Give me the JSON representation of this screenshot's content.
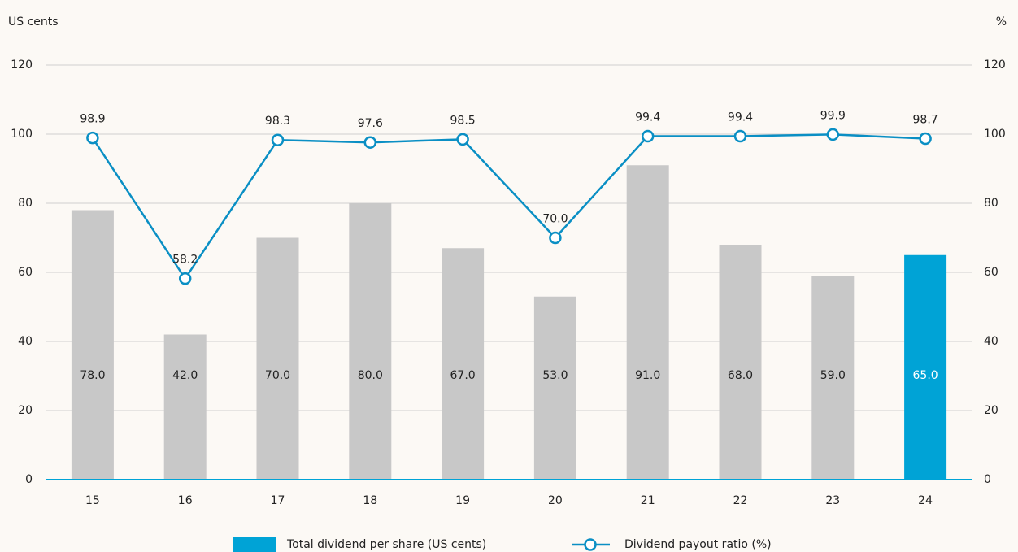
{
  "chart_data": {
    "type": "bar_line",
    "y_label": "US cents",
    "y2_label": "%",
    "categories": [
      "15",
      "16",
      "17",
      "18",
      "19",
      "20",
      "21",
      "22",
      "23",
      "24"
    ],
    "series": [
      {
        "name": "Total dividend per share (US cents)",
        "type": "bar",
        "color": "#00a3d6",
        "colors": [
          "#c8c8c8",
          "#c8c8c8",
          "#c8c8c8",
          "#c8c8c8",
          "#c8c8c8",
          "#c8c8c8",
          "#c8c8c8",
          "#c8c8c8",
          "#c8c8c8",
          "#00a3d6"
        ],
        "values": [
          78,
          42,
          70,
          80,
          67,
          53,
          91,
          68,
          59,
          65
        ],
        "value_labels": [
          "78.0",
          "42.0",
          "70.0",
          "80.0",
          "67.0",
          "53.0",
          "91.0",
          "68.0",
          "59.0",
          "65.0"
        ]
      },
      {
        "name": "Dividend payout ratio (%)",
        "type": "line",
        "axis": "y2",
        "color": "#0a8fc4",
        "values": [
          98.9,
          58.2,
          98.3,
          97.6,
          98.5,
          70,
          99.4,
          99.4,
          99.9,
          98.7
        ],
        "value_labels": [
          "98.9",
          "58.2",
          "98.3",
          "97.6",
          "98.5",
          "70.0",
          "99.4",
          "99.4",
          "99.9",
          "98.7"
        ]
      }
    ],
    "ylim": [
      0,
      120
    ],
    "yticks": [
      0,
      20,
      40,
      60,
      80,
      100,
      120
    ],
    "y2lim": [
      0,
      120
    ],
    "y2ticks": [
      0,
      20,
      40,
      60,
      80,
      100,
      120
    ],
    "grid": true
  }
}
